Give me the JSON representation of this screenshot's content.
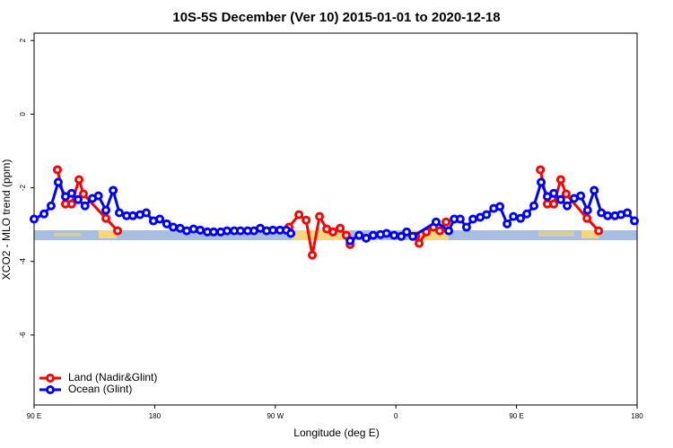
{
  "chart_data": {
    "type": "line",
    "title": "10S-5S December (Ver 10)   2015-01-01 to 2020-12-18",
    "xlabel": "Longitude (deg E)",
    "ylabel": "XCO2 - MLO trend (ppm)",
    "xlim": [
      90,
      540
    ],
    "ylim": [
      -7.9,
      2.2
    ],
    "xticks": [
      {
        "value": 90,
        "label": "90 E"
      },
      180,
      {
        "value": 270,
        "label": "90 W"
      },
      {
        "value": 360,
        "label": "0"
      },
      {
        "value": 450,
        "label": "90 E"
      },
      {
        "value": 540,
        "label": "180"
      }
    ],
    "yticks": [
      -6,
      -4,
      -2,
      0,
      2
    ],
    "legend": "bottom-left",
    "series": [
      {
        "name": "Land (Nadir&Glint)",
        "color": "#ff0000",
        "x": [
          107.4,
          113.4,
          118,
          123.5,
          126.8,
          143.6,
          152.3,
          280.2,
          287.6,
          293,
          297.6,
          303,
          308.4,
          313,
          318.4,
          323,
          325.8,
          374.7,
          377.3,
          382.7,
          388,
          392.7,
          397.4,
          467.8,
          473,
          477.8,
          483,
          487,
          502.6,
          511.3
        ],
        "values": [
          -1.51,
          -2.44,
          -2.44,
          -1.78,
          -2.17,
          -2.83,
          -3.17,
          -3.07,
          -2.73,
          -2.88,
          -3.83,
          -2.78,
          -3.12,
          -3.2,
          -3.1,
          -3.29,
          -3.54,
          -3.32,
          -3.51,
          -3.2,
          -3.07,
          -3.17,
          -2.93,
          -1.51,
          -2.44,
          -2.44,
          -1.78,
          -2.17,
          -2.83,
          -3.17
        ]
      },
      {
        "name": "Ocean (Glint)",
        "color": "#0000ff",
        "x": [
          90,
          97.4,
          102.7,
          108,
          113.4,
          118,
          122.8,
          128,
          133.5,
          138,
          143.6,
          149,
          153.6,
          159,
          163.7,
          169,
          173.7,
          179,
          183.8,
          189,
          193.8,
          199,
          203.9,
          209,
          214,
          219.3,
          224,
          229.3,
          234,
          239.4,
          244,
          249.4,
          254,
          258.8,
          263.5,
          268.2,
          273.5,
          278.2,
          281.6,
          325.8,
          332.5,
          337.8,
          343,
          348.5,
          353,
          358.6,
          364,
          368,
          372.6,
          390,
          399.4,
          403.5,
          408,
          412.7,
          417.5,
          422.9,
          427.6,
          433,
          437.6,
          443,
          447.7,
          453,
          457.7,
          463,
          468.4,
          473,
          477.8,
          483,
          487.8,
          493,
          497.9,
          503,
          508,
          513.3,
          518,
          523.4,
          528,
          532.7,
          538
        ],
        "values": [
          -2.85,
          -2.71,
          -2.49,
          -1.85,
          -2.24,
          -2.15,
          -2.32,
          -2.49,
          -2.29,
          -2.22,
          -2.61,
          -2.07,
          -2.68,
          -2.76,
          -2.76,
          -2.73,
          -2.68,
          -2.9,
          -2.85,
          -2.98,
          -3.07,
          -3.1,
          -3.17,
          -3.12,
          -3.15,
          -3.2,
          -3.2,
          -3.2,
          -3.17,
          -3.17,
          -3.17,
          -3.17,
          -3.17,
          -3.1,
          -3.17,
          -3.15,
          -3.15,
          -3.15,
          -3.24,
          -3.44,
          -3.29,
          -3.37,
          -3.29,
          -3.27,
          -3.24,
          -3.29,
          -3.32,
          -3.2,
          -3.32,
          -2.93,
          -3.17,
          -2.85,
          -2.85,
          -3.07,
          -2.85,
          -2.8,
          -2.73,
          -2.56,
          -2.51,
          -2.98,
          -2.78,
          -2.83,
          -2.71,
          -2.49,
          -1.85,
          -2.24,
          -2.15,
          -2.32,
          -2.49,
          -2.29,
          -2.22,
          -2.61,
          -2.07,
          -2.68,
          -2.76,
          -2.76,
          -2.73,
          -2.68,
          -2.9
        ]
      }
    ]
  }
}
